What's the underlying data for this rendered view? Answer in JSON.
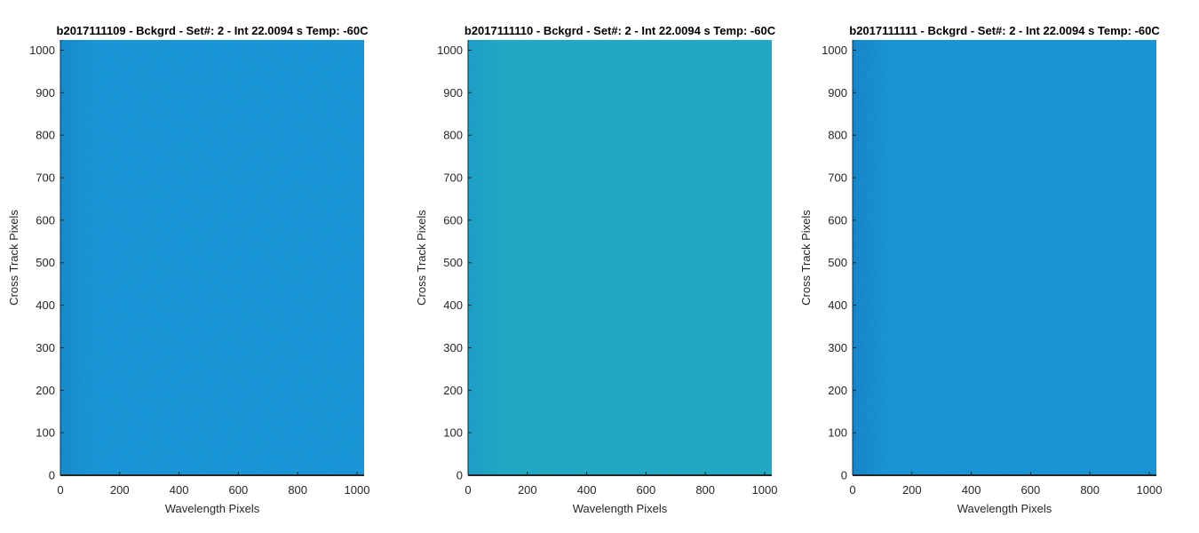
{
  "chart_data": [
    {
      "type": "heatmap",
      "title": "b2017111109 - Bckgrd - Set#: 2 - Int 22.0094 s Temp: -60C",
      "xlabel": "Wavelength Pixels",
      "ylabel": "Cross Track Pixels",
      "xlim": [
        0,
        1024
      ],
      "ylim": [
        0,
        1024
      ],
      "xticks": [
        0,
        200,
        400,
        600,
        800,
        1000
      ],
      "yticks": [
        0,
        100,
        200,
        300,
        400,
        500,
        600,
        700,
        800,
        900,
        1000
      ],
      "fill_color": "#0d90d4",
      "edge_color": "#0b84c8",
      "grid": false
    },
    {
      "type": "heatmap",
      "title": "b2017111110 - Bckgrd - Set#: 2 - Int 22.0094 s Temp: -60C",
      "xlabel": "Wavelength Pixels",
      "ylabel": "Cross Track Pixels",
      "xlim": [
        0,
        1024
      ],
      "ylim": [
        0,
        1024
      ],
      "xticks": [
        0,
        200,
        400,
        600,
        800,
        1000
      ],
      "yticks": [
        0,
        100,
        200,
        300,
        400,
        500,
        600,
        700,
        800,
        900,
        1000
      ],
      "fill_color": "#16a3c0",
      "edge_color": "#1298c4",
      "grid": false
    },
    {
      "type": "heatmap",
      "title": "b2017111111 - Bckgrd - Set#: 2 - Int 22.0094 s Temp: -60C",
      "xlabel": "Wavelength Pixels",
      "ylabel": "Cross Track Pixels",
      "xlim": [
        0,
        1024
      ],
      "ylim": [
        0,
        1024
      ],
      "xticks": [
        0,
        200,
        400,
        600,
        800,
        1000
      ],
      "yticks": [
        0,
        100,
        200,
        300,
        400,
        500,
        600,
        700,
        800,
        900,
        1000
      ],
      "fill_color": "#0d8fd2",
      "edge_color": "#0a7fc6",
      "grid": false
    }
  ]
}
